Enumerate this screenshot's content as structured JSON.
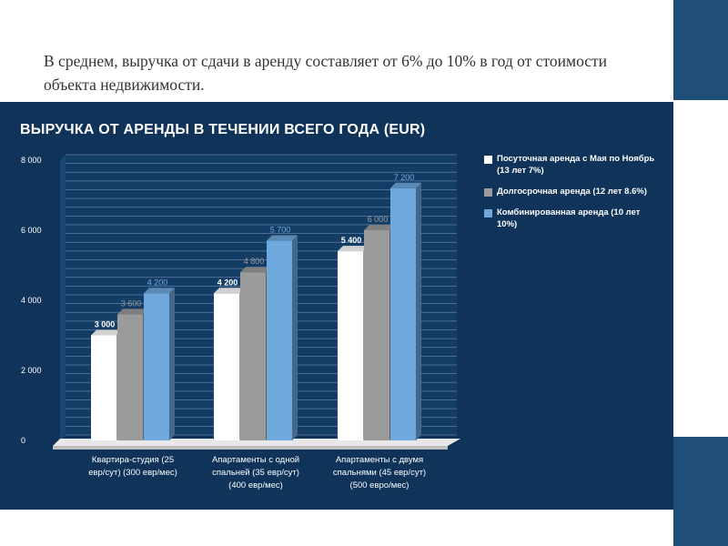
{
  "intro_text": "В среднем,  выручка от сдачи в аренду составляет от 6% до 10% в год от стоимости объекта недвижимости.",
  "colors": {
    "panel_bg": "#0f3359",
    "strip": "#1f4e79",
    "series": [
      "#ffffff",
      "#9b9b9b",
      "#6fa8dc"
    ],
    "value_labels": [
      "#ffffff",
      "#9b9b9b",
      "#6fa8dc"
    ]
  },
  "chart_data": {
    "type": "bar",
    "title": "ВЫРУЧКА ОТ АРЕНДЫ В ТЕЧЕНИИ ВСЕГО ГОДА (EUR)",
    "categories": [
      [
        "Квартира-студия (25",
        "евр/сут) (300 евр/мес)"
      ],
      [
        "Апартаменты с одной",
        "спальней (35 евр/сут)",
        "(400 евр/мес)"
      ],
      [
        "Апартаменты с двумя",
        "спальнями (45 евр/сут)",
        "(500 евро/мес)"
      ]
    ],
    "series": [
      {
        "name": "Посуточная аренда с Мая по Ноябрь (13 лет 7%)",
        "values": [
          3000,
          4200,
          5400
        ],
        "labels": [
          "3 000",
          "4 200",
          "5 400"
        ]
      },
      {
        "name": "Долгосрочная аренда (12 лет 8.6%)",
        "values": [
          3600,
          4800,
          6000
        ],
        "labels": [
          "3 600",
          "4 800",
          "6 000"
        ]
      },
      {
        "name": "Комбинированная аренда (10 лет 10%)",
        "values": [
          4200,
          5700,
          7200
        ],
        "labels": [
          "4 200",
          "5 700",
          "7 200"
        ]
      }
    ],
    "yticks": [
      0,
      2000,
      4000,
      6000,
      8000
    ],
    "ytick_labels": [
      "0",
      "2 000",
      "4 000",
      "6 000",
      "8 000"
    ],
    "ylim": [
      0,
      8000
    ],
    "grid": true,
    "legend_position": "right",
    "style": "3d"
  }
}
